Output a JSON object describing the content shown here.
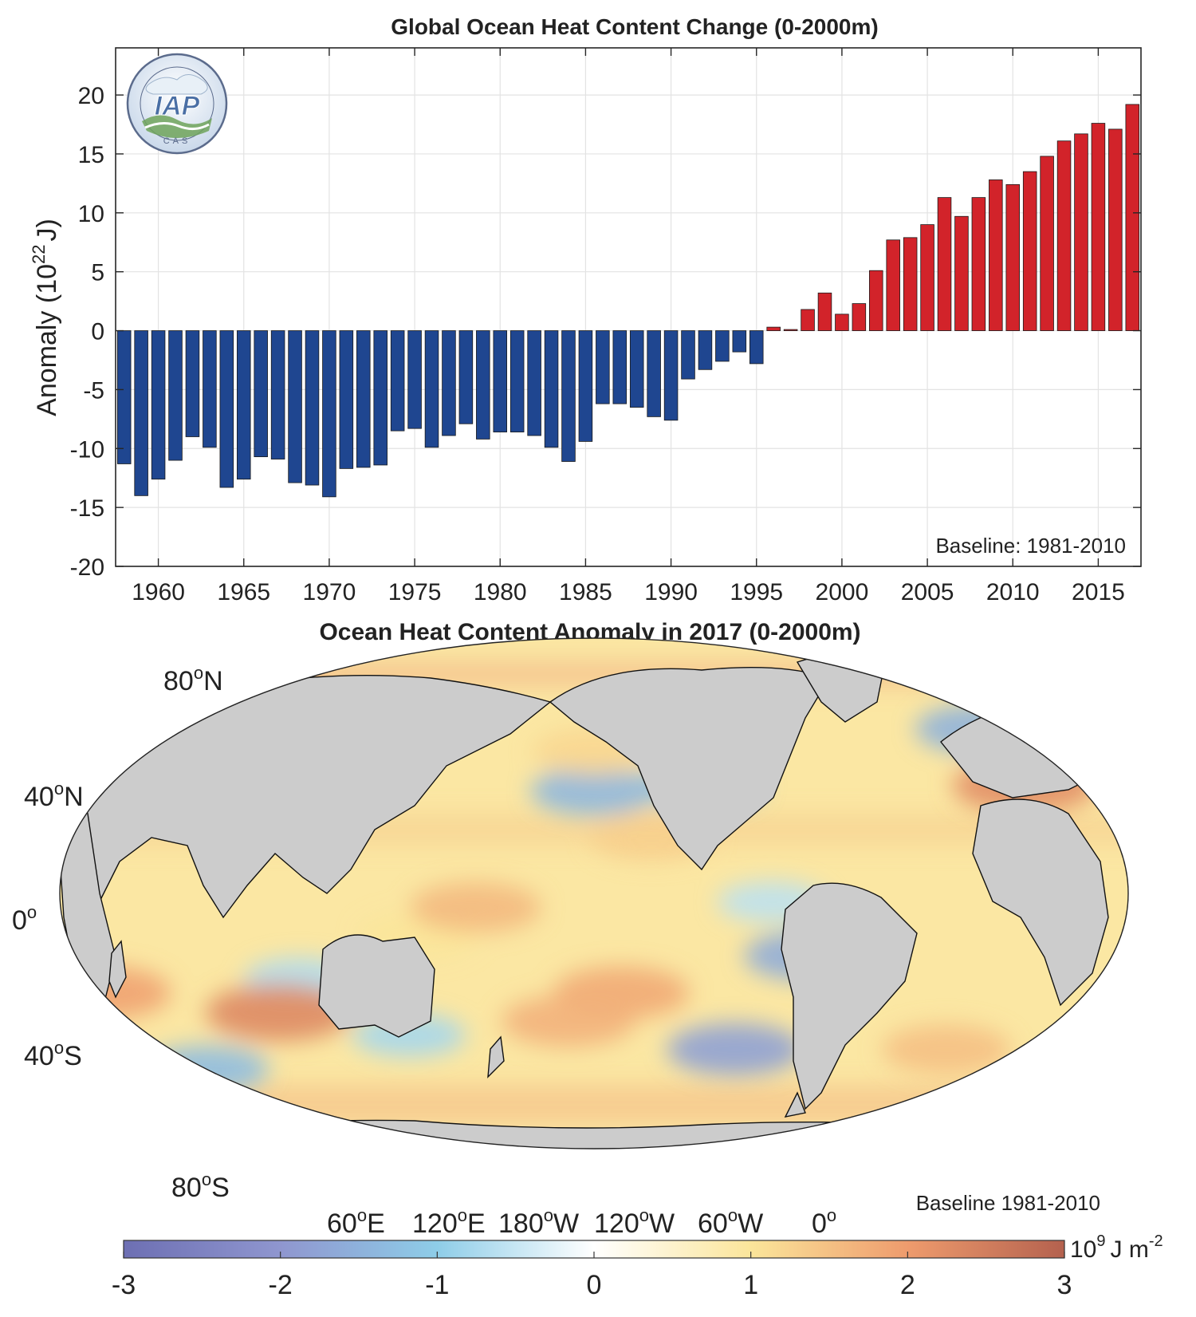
{
  "chart_data": [
    {
      "type": "bar",
      "title": "Global Ocean Heat Content Change (0-2000m)",
      "ylabel_main": "Anomaly (10",
      "ylabel_exp": "22",
      "ylabel_unit": "J)",
      "xlabel": "",
      "ylim": [
        -20,
        24
      ],
      "yticks": [
        -20,
        -15,
        -10,
        -5,
        0,
        5,
        10,
        15,
        20
      ],
      "xlim": [
        1957.5,
        2017.5
      ],
      "xticks": [
        1960,
        1965,
        1970,
        1975,
        1980,
        1985,
        1990,
        1995,
        2000,
        2005,
        2010,
        2015
      ],
      "grid": true,
      "annotation": "Baseline: 1981-2010",
      "logo_text": "IAP",
      "logo_subtext": "CAS",
      "negative_color": "#1f4690",
      "positive_color": "#d2232a",
      "years": [
        1958,
        1959,
        1960,
        1961,
        1962,
        1963,
        1964,
        1965,
        1966,
        1967,
        1968,
        1969,
        1970,
        1971,
        1972,
        1973,
        1974,
        1975,
        1976,
        1977,
        1978,
        1979,
        1980,
        1981,
        1982,
        1983,
        1984,
        1985,
        1986,
        1987,
        1988,
        1989,
        1990,
        1991,
        1992,
        1993,
        1994,
        1995,
        1996,
        1997,
        1998,
        1999,
        2000,
        2001,
        2002,
        2003,
        2004,
        2005,
        2006,
        2007,
        2008,
        2009,
        2010,
        2011,
        2012,
        2013,
        2014,
        2015,
        2016,
        2017
      ],
      "values": [
        -11.3,
        -14.0,
        -12.6,
        -11.0,
        -9.0,
        -9.9,
        -13.3,
        -12.6,
        -10.7,
        -10.9,
        -12.9,
        -13.1,
        -14.1,
        -11.7,
        -11.6,
        -11.4,
        -8.5,
        -8.3,
        -9.9,
        -8.9,
        -7.9,
        -9.2,
        -8.6,
        -8.6,
        -8.9,
        -9.9,
        -11.1,
        -9.4,
        -6.2,
        -6.2,
        -6.5,
        -7.3,
        -7.6,
        -4.1,
        -3.3,
        -2.6,
        -1.8,
        -2.8,
        0.3,
        0.1,
        1.8,
        3.2,
        1.4,
        2.3,
        5.1,
        7.7,
        7.9,
        9.0,
        11.3,
        9.7,
        11.3,
        12.8,
        12.4,
        13.5,
        14.8,
        16.1,
        16.7,
        17.6,
        17.1,
        19.2
      ]
    },
    {
      "type": "heatmap",
      "title": "Ocean Heat Content Anomaly in 2017 (0-2000m)",
      "lat_labels": [
        "80",
        "40",
        "0",
        "40",
        "80"
      ],
      "lat_suffixes": [
        "N",
        "N",
        "",
        "S",
        "S"
      ],
      "lon_labels": [
        "60",
        "120",
        "180",
        "120",
        "60",
        "0"
      ],
      "lon_suffixes": [
        "E",
        "E",
        "W",
        "W",
        "W",
        ""
      ],
      "degree_symbol": "o",
      "annotation": "Baseline 1981-2010",
      "colorbar": {
        "ticks": [
          "-3",
          "-2",
          "-1",
          "0",
          "1",
          "2",
          "3"
        ],
        "range": [
          -3,
          3
        ],
        "unit_base": "10",
        "unit_exp": "9",
        "unit_mid": "J m",
        "unit_exp2": "-2",
        "colors": [
          "#6d6fb3",
          "#8f96cf",
          "#8ecde8",
          "#ffffff",
          "#fbe59a",
          "#ee9b6d",
          "#b4614e"
        ]
      },
      "land_color": "#cccccc",
      "anomaly_features": [
        {
          "lon": -170,
          "lat": 38,
          "value": -1.2
        },
        {
          "lon": 150,
          "lat": 36,
          "value": -1.4
        },
        {
          "lon": -150,
          "lat": -3,
          "value": -0.6
        },
        {
          "lon": -135,
          "lat": -22,
          "value": -1.6
        },
        {
          "lon": -40,
          "lat": 58,
          "value": -1.5
        },
        {
          "lon": -150,
          "lat": -55,
          "value": -1.8
        },
        {
          "lon": -30,
          "lat": -62,
          "value": -1.3
        },
        {
          "lon": 75,
          "lat": -50,
          "value": -0.8
        },
        {
          "lon": 45,
          "lat": -30,
          "value": -0.7
        },
        {
          "lon": -50,
          "lat": 38,
          "value": 2.2
        },
        {
          "lon": -20,
          "lat": 68,
          "value": 2.0
        },
        {
          "lon": 20,
          "lat": 36,
          "value": 1.6
        },
        {
          "lon": 170,
          "lat": 20,
          "value": 1.3
        },
        {
          "lon": 160,
          "lat": -35,
          "value": 1.8
        },
        {
          "lon": 140,
          "lat": -45,
          "value": 1.7
        },
        {
          "lon": 30,
          "lat": -42,
          "value": 2.3
        },
        {
          "lon": -30,
          "lat": -35,
          "value": 1.9
        },
        {
          "lon": 150,
          "lat": 50,
          "value": 1.2
        },
        {
          "lon": 90,
          "lat": -15,
          "value": 1.0
        },
        {
          "lon": 110,
          "lat": -5,
          "value": 1.6
        },
        {
          "lon": -60,
          "lat": -55,
          "value": 1.5
        }
      ]
    }
  ]
}
